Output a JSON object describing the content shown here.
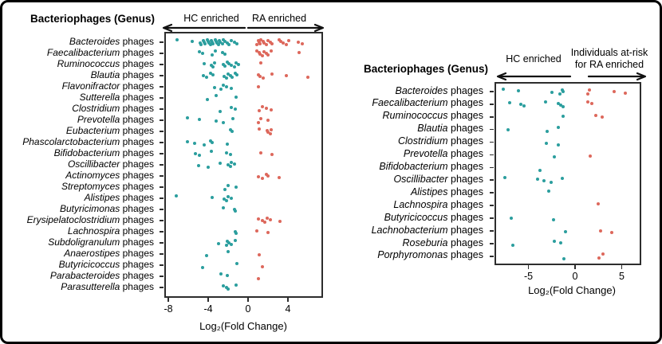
{
  "figure": {
    "background": "#ffffff",
    "border_color": "#000000"
  },
  "colors": {
    "hc_dot": "#2b9e9e",
    "ra_dot": "#dd685c",
    "axis_line": "#2d2d2d",
    "text": "#000000"
  },
  "chart_data": [
    {
      "id": "left-panel",
      "type": "scatter",
      "title": "Bacteriophages (Genus)",
      "xlabel": "Log₂(Fold Change)",
      "xticks": [
        -8,
        -4,
        0,
        4
      ],
      "xlim": [
        -8.4,
        7.5
      ],
      "ylabel_suffix": "phages",
      "grid": false,
      "legend_position": "top",
      "groups": [
        {
          "name": "HC enriched",
          "color": "#2b9e9e",
          "side": "negative"
        },
        {
          "name": "RA enriched",
          "color": "#dd685c",
          "side": "positive"
        }
      ],
      "rows": [
        {
          "genus": "Bacteroides",
          "hc": [
            -7.1,
            -5.6,
            -4.8,
            -4.7,
            -4.5,
            -4.4,
            -4.3,
            -4.1,
            -4.0,
            -3.9,
            -3.8,
            -3.7,
            -3.6,
            -3.5,
            -3.3,
            -3.2,
            -3.1,
            -3.0,
            -2.9,
            -2.8,
            -2.6,
            -2.5,
            -2.3,
            -2.1,
            -1.9,
            -1.7,
            -1.4,
            -1.1
          ],
          "ra": [
            0.9,
            1.0,
            1.1,
            1.2,
            1.3,
            1.5,
            1.6,
            1.8,
            2.0,
            2.2,
            2.4,
            3.1,
            3.3,
            3.5,
            3.8,
            4.1,
            5.0,
            5.4
          ]
        },
        {
          "genus": "Faecalibacterium",
          "hc": [
            -4.9,
            -4.6,
            -3.6,
            -3.3,
            -2.6,
            -2.3
          ],
          "ra": [
            0.9,
            1.1,
            1.2,
            1.4,
            1.6,
            1.8,
            2.0,
            2.3,
            5.1
          ]
        },
        {
          "genus": "Ruminococcus",
          "hc": [
            -4.4,
            -3.7,
            -3.5,
            -3.4,
            -2.5,
            -2.3,
            -2.1,
            -1.9,
            -1.7,
            -1.4,
            -1.2,
            -1.0
          ],
          "ra": [
            1.3
          ]
        },
        {
          "genus": "Blautia",
          "hc": [
            -4.5,
            -4.2,
            -3.8,
            -3.5,
            -2.4,
            -2.2,
            -2.0,
            -1.8,
            -1.6,
            -1.3,
            -1.1
          ],
          "ra": [
            1.0,
            1.2,
            1.5,
            2.4,
            3.8,
            6.0
          ]
        },
        {
          "genus": "Flavonifractor",
          "hc": [
            -3.4,
            -2.7,
            -2.5,
            -2.2,
            -1.7
          ],
          "ra": [
            1.0
          ]
        },
        {
          "genus": "Sutterella",
          "hc": [
            -4.1,
            -3.2,
            -1.2
          ],
          "ra": []
        },
        {
          "genus": "Clostridium",
          "hc": [
            -2.8,
            -1.7,
            -1.3
          ],
          "ra": [
            1.1,
            1.4,
            1.8,
            2.3
          ]
        },
        {
          "genus": "Prevotella",
          "hc": [
            -6.1,
            -4.9,
            -3.2,
            -2.5,
            -1.5
          ],
          "ra": [
            1.0,
            1.3,
            2.0
          ]
        },
        {
          "genus": "Eubacterium",
          "hc": [
            -1.8,
            -1.6
          ],
          "ra": [
            1.1,
            1.9,
            2.0,
            2.2,
            2.3
          ]
        },
        {
          "genus": "Phascolarctobacterium",
          "hc": [
            -6.1,
            -5.4,
            -4.4,
            -3.8,
            -3.6,
            -2.1
          ],
          "ra": []
        },
        {
          "genus": "Bifidobacterium",
          "hc": [
            -5.3,
            -4.9,
            -3.7,
            -2.2,
            -1.8
          ],
          "ra": [
            1.3,
            2.4
          ]
        },
        {
          "genus": "Oscillibacter",
          "hc": [
            -5.0,
            -4.0,
            -2.8,
            -2.0,
            -1.8,
            -1.7,
            -1.4
          ],
          "ra": []
        },
        {
          "genus": "Actinomyces",
          "hc": [],
          "ra": [
            1.0,
            1.4,
            1.8,
            2.0,
            3.1
          ]
        },
        {
          "genus": "Streptomyces",
          "hc": [
            -2.3,
            -2.0,
            -1.2
          ],
          "ra": []
        },
        {
          "genus": "Alistipes",
          "hc": [
            -7.2,
            -3.6,
            -2.4,
            -2.2,
            -2.0,
            -1.7
          ],
          "ra": []
        },
        {
          "genus": "Butyricimonas",
          "hc": [
            -2.5,
            -1.4,
            -1.3
          ],
          "ra": []
        },
        {
          "genus": "Erysipelatoclostridium",
          "hc": [],
          "ra": [
            1.0,
            1.4,
            1.7,
            1.9,
            2.2,
            3.2
          ]
        },
        {
          "genus": "Lachnospira",
          "hc": [
            -1.3,
            -1.2
          ],
          "ra": [
            0.9,
            2.0
          ]
        },
        {
          "genus": "Subdoligranulum",
          "hc": [
            -3.0,
            -2.2,
            -2.1,
            -1.9,
            -1.7,
            -1.3
          ],
          "ra": []
        },
        {
          "genus": "Anaerostipes",
          "hc": [
            -4.2,
            -2.0
          ],
          "ra": [
            1.1
          ]
        },
        {
          "genus": "Butyricicoccus",
          "hc": [
            -4.6,
            -1.1
          ],
          "ra": [
            1.4
          ]
        },
        {
          "genus": "Parabacteroides",
          "hc": [
            -2.7,
            -2.1
          ],
          "ra": [
            1.0
          ]
        },
        {
          "genus": "Parasutterella",
          "hc": [
            -2.5,
            -2.2,
            -2.0,
            -1.2
          ],
          "ra": []
        }
      ]
    },
    {
      "id": "right-panel",
      "type": "scatter",
      "title": "Bacteriophages (Genus)",
      "xlabel": "Log₂(Fold Change)",
      "xticks": [
        -5,
        0,
        5
      ],
      "xlim": [
        -8.6,
        7.0
      ],
      "ylabel_suffix": "phages",
      "grid": false,
      "legend_position": "top",
      "groups": [
        {
          "name": "HC enriched",
          "color": "#2b9e9e",
          "side": "negative"
        },
        {
          "name": "Individuals at-risk for RA enriched",
          "name_lines": [
            "Individuals at-risk",
            "for RA enriched"
          ],
          "color": "#dd685c",
          "side": "positive"
        }
      ],
      "rows": [
        {
          "genus": "Bacteroides",
          "hc": [
            -7.7,
            -6.1,
            -2.5,
            -1.6,
            -1.4,
            -1.3
          ],
          "ra": [
            1.4,
            1.5,
            4.2,
            5.4
          ]
        },
        {
          "genus": "Faecalibacterium",
          "hc": [
            -7.0,
            -5.8,
            -5.5,
            -3.2,
            -1.8,
            -1.5,
            -1.3
          ],
          "ra": [
            1.4,
            1.8
          ]
        },
        {
          "genus": "Ruminococcus",
          "hc": [
            -1.3
          ],
          "ra": [
            2.2,
            2.9
          ]
        },
        {
          "genus": "Blautia",
          "hc": [
            -7.2,
            -3.0,
            -1.8
          ],
          "ra": []
        },
        {
          "genus": "Clostridium",
          "hc": [
            -3.1,
            -1.8
          ],
          "ra": []
        },
        {
          "genus": "Prevotella",
          "hc": [
            -2.2
          ],
          "ra": [
            1.6
          ]
        },
        {
          "genus": "Bifidobacterium",
          "hc": [
            -3.8
          ],
          "ra": []
        },
        {
          "genus": "Oscillibacter",
          "hc": [
            -7.5,
            -4.0,
            -3.3,
            -2.6,
            -1.4
          ],
          "ra": []
        },
        {
          "genus": "Alistipes",
          "hc": [
            -2.8
          ],
          "ra": []
        },
        {
          "genus": "Lachnospira",
          "hc": [],
          "ra": [
            2.5
          ]
        },
        {
          "genus": "Butyricicoccus",
          "hc": [
            -6.8,
            -2.3
          ],
          "ra": []
        },
        {
          "genus": "Lachnobacterium",
          "hc": [
            -1.0
          ],
          "ra": [
            2.7,
            3.9
          ]
        },
        {
          "genus": "Roseburia",
          "hc": [
            -6.7,
            -2.2,
            -1.5
          ],
          "ra": []
        },
        {
          "genus": "Porphyromonas",
          "hc": [
            -1.2
          ],
          "ra": [
            2.6,
            3.0
          ]
        }
      ]
    }
  ]
}
